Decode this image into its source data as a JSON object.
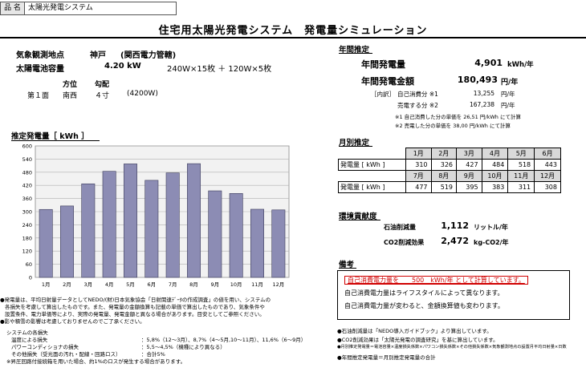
{
  "header": {
    "name_label": "品 名",
    "name_value": "太陽光発電システム",
    "title": "住宅用太陽光発電システム　発電量シミュレーション"
  },
  "site": {
    "location_label": "気象観測地点",
    "location_value": "神戸",
    "utility": "(関西電力管轄)",
    "capacity_label": "太陽電池容量",
    "capacity_value": "4.20 kW",
    "capacity_detail": "240W×15枚 ＋ 120W×5枚",
    "col_direction": "方位",
    "col_slope": "勾配",
    "face_label": "第１面",
    "face_direction": "南西",
    "face_slope": "４寸",
    "face_power": "(4200W)"
  },
  "annual": {
    "heading": "年間推定",
    "generation_label": "年間発電量",
    "generation_value": "4,901",
    "generation_unit": "kWh/年",
    "amount_label": "年間発電金額",
    "amount_value": "180,493",
    "amount_unit": "円/年",
    "breakdown_label": "［内訳］",
    "self_label": "自己消費分 ※1",
    "self_value": "13,255",
    "self_unit": "円/年",
    "sell_label": "売電する分 ※2",
    "sell_value": "167,238",
    "sell_unit": "円/年",
    "note1": "※1 自己消費した分の単価を 26,51 円/kWh にて計算",
    "note2": "※2 売電した分の単価を 38,00 円/kWh にて計算"
  },
  "monthly": {
    "heading": "月別推定",
    "row_label": "発電量 [ kWh ]",
    "months_1": [
      "1月",
      "2月",
      "3月",
      "4月",
      "5月",
      "6月"
    ],
    "values_1": [
      "310",
      "326",
      "427",
      "484",
      "518",
      "443"
    ],
    "months_2": [
      "7月",
      "8月",
      "9月",
      "10月",
      "11月",
      "12月"
    ],
    "values_2": [
      "477",
      "519",
      "395",
      "383",
      "311",
      "308"
    ]
  },
  "environment": {
    "heading": "環境貢献度",
    "oil_label": "石油削減量",
    "oil_value": "1,112",
    "oil_unit": "リットル/年",
    "co2_label": "CO2削減効果",
    "co2_value": "2,472",
    "co2_unit": "kg-CO2/年"
  },
  "remarks": {
    "heading": "備考",
    "line1": "自己消費電力量を　　500　kWh/年 として計算しています。",
    "line2": "自己消費電力量はライフスタイルによって異なります。",
    "line3": "自己消費電力量が変わると、金額換算値も変わります。"
  },
  "footnotes_right": {
    "f1": "●石油削減量は「NEDO導入ガイドブック」より算出しています。",
    "f2": "●CO2削減効果は「太陽光発電の調査研究」を基に算出しています。",
    "f3": "●月別推定発電量＝電池容量×温度損失係数×パワコン損失係数×その他損失係数×気象観測地点の設置月平均日射量×日数",
    "f4": "●年間推定発電量＝月別推定発電量の合計"
  },
  "footnotes_left": {
    "p1": "●発電量は、平均日射量データとしてNEDO/(財)日本気象協会「日射関連ﾃﾞｰﾀの作成調査」の値を用い、システムの",
    "p2": "各損失を考慮して算出したものです。また、発電量の金額換算も記載の単価で算出したものであり、気象条件や",
    "p3": "設置条件、電力単価等により、実際の発電量、発電金額と異なる場合があります。目安としてご参照ください。",
    "p4": "●影や積雪の影響は考慮しておりませんのでご了承ください。",
    "loss_heading": "システムの各損失",
    "loss1_label": "温度による損失",
    "loss1_value": "：5,8%（12～3月）、8,7%（4～5月,10～11月）、11,6%（6～9月）",
    "loss2_label": "パワーコンディショナの損失",
    "loss2_value": "：5,5～4,5%（機種により異なる）",
    "loss3_label": "その他損失（受光面の汚れ・配線・回路ロス）",
    "loss3_value": "：合計5%",
    "loss_note": "※昇圧回路付接続箱を用いた場合、約1%のロスが発生する場合があります。"
  },
  "chart_data": {
    "type": "bar",
    "title": "推定発電量［ kWh ］",
    "categories": [
      "1月",
      "2月",
      "3月",
      "4月",
      "5月",
      "6月",
      "7月",
      "8月",
      "9月",
      "10月",
      "11月",
      "12月"
    ],
    "values": [
      310,
      326,
      427,
      484,
      518,
      443,
      477,
      519,
      395,
      383,
      311,
      308
    ],
    "yticks": [
      "0",
      "60",
      "120",
      "180",
      "240",
      "300",
      "360",
      "420",
      "480",
      "540",
      "600"
    ],
    "ylim": [
      0,
      600
    ],
    "bar_color": "#8c8cb4",
    "plot_bg": "#f2f2f2",
    "grid": true
  }
}
